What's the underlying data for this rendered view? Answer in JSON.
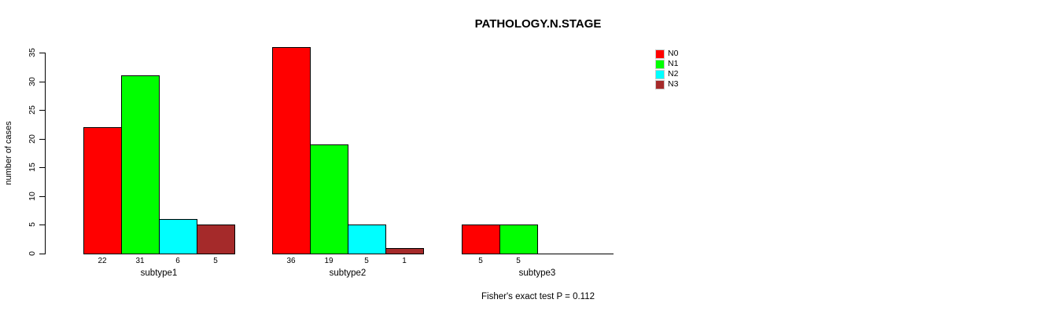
{
  "chart_data": {
    "type": "bar",
    "beside": true,
    "title": "PATHOLOGY.N.STAGE",
    "xlabel": "",
    "ylabel": "number of cases",
    "categories": [
      "subtype1",
      "subtype2",
      "subtype3"
    ],
    "series": [
      {
        "name": "N0",
        "color": "#ff0000",
        "values": [
          22,
          36,
          5
        ]
      },
      {
        "name": "N1",
        "color": "#00ff00",
        "values": [
          31,
          19,
          5
        ]
      },
      {
        "name": "N2",
        "color": "#00ffff",
        "values": [
          6,
          5,
          0
        ]
      },
      {
        "name": "N3",
        "color": "#a52a2a",
        "values": [
          5,
          1,
          0
        ]
      }
    ],
    "bar_value_labels": {
      "subtype1": [
        "22",
        "31",
        "6",
        "5"
      ],
      "subtype2": [
        "36",
        "19",
        "5",
        "1"
      ],
      "subtype3": [
        "5",
        "5",
        "",
        ""
      ]
    },
    "ylim": [
      0,
      35
    ],
    "yticks": [
      "0",
      "5",
      "10",
      "15",
      "20",
      "25",
      "30",
      "35"
    ],
    "grid": false,
    "legend_position": "top-right",
    "annotation": "Fisher's exact test P = 0.112"
  },
  "colors": {
    "background": "#ffffff",
    "axis": "#000000",
    "bar_border": "#000000",
    "text": "#000000"
  }
}
